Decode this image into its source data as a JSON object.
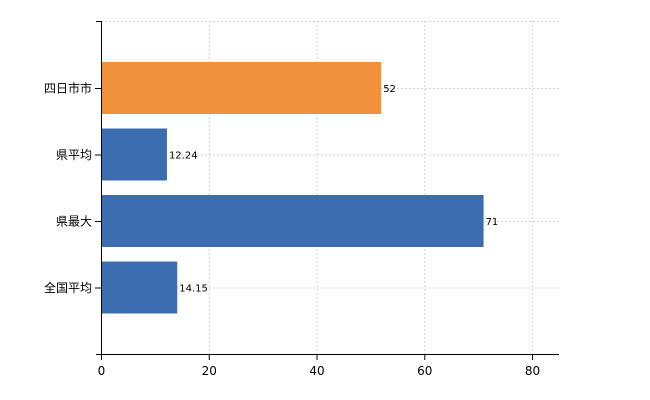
{
  "chart_data": {
    "type": "bar",
    "orientation": "horizontal",
    "categories": [
      "四日市市",
      "県平均",
      "県最大",
      "全国平均"
    ],
    "values": [
      52,
      12.24,
      71,
      14.15
    ],
    "value_labels": [
      "52",
      "12.24",
      "71",
      "14.15"
    ],
    "bar_colors": [
      "#f0923b",
      "#3c6db0",
      "#3c6db0",
      "#3c6db0"
    ],
    "xlim": [
      0,
      85
    ],
    "xticks": [
      0,
      20,
      40,
      60,
      80
    ],
    "xtick_labels": [
      "0",
      "20",
      "40",
      "60",
      "80"
    ],
    "grid": true,
    "grid_style": "dotted",
    "title": "",
    "xlabel": "",
    "ylabel": "",
    "legend": "none"
  }
}
